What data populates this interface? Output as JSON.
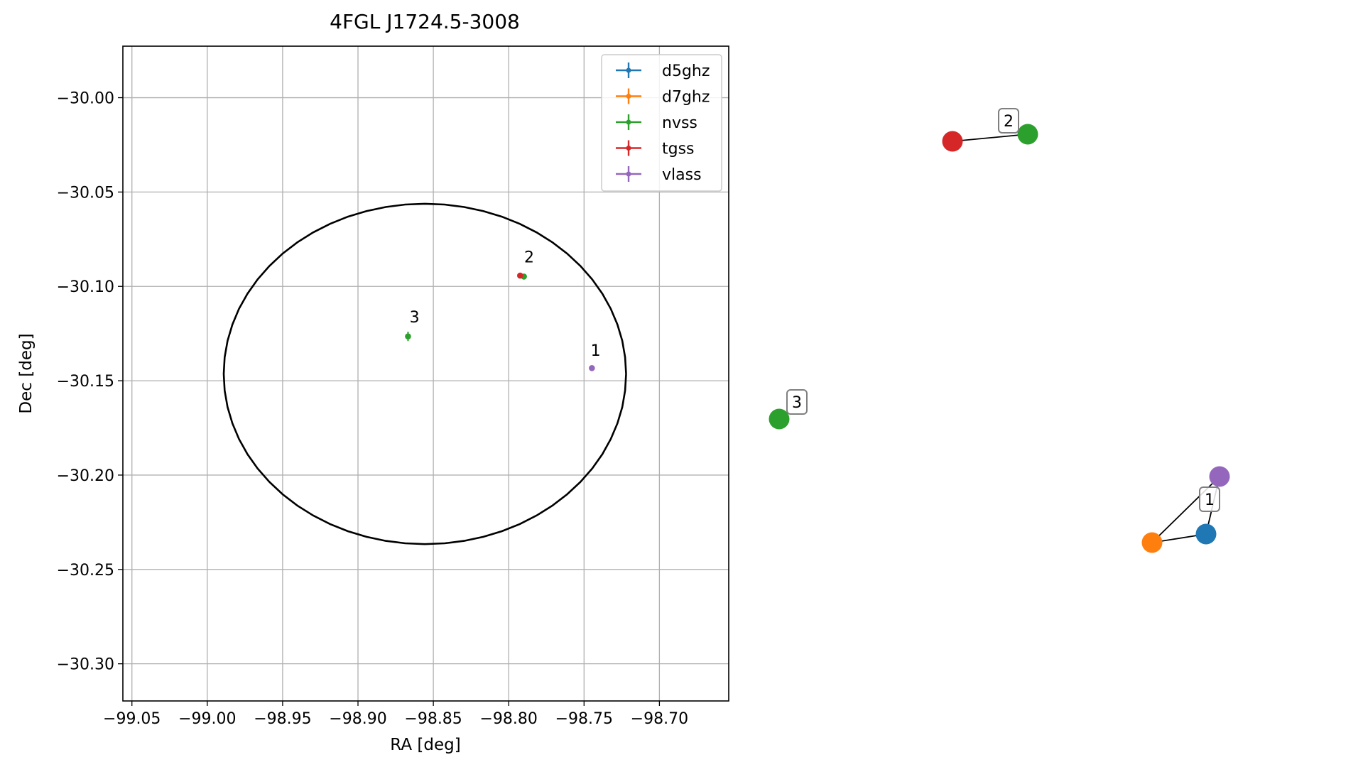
{
  "chart_data": [
    {
      "type": "scatter",
      "title": "4FGL J1724.5-3008",
      "xlabel": "RA [deg]",
      "ylabel": "Dec [deg]",
      "xlim": [
        -99.056,
        -98.654
      ],
      "ylim": [
        -30.3197,
        -29.9727
      ],
      "xticks": [
        -99.05,
        -99.0,
        -98.95,
        -98.9,
        -98.85,
        -98.8,
        -98.75,
        -98.7
      ],
      "xtick_labels": [
        "−99.05",
        "−99.00",
        "−98.95",
        "−98.90",
        "−98.85",
        "−98.80",
        "−98.75",
        "−98.70"
      ],
      "yticks": [
        -30.0,
        -30.05,
        -30.1,
        -30.15,
        -30.2,
        -30.25,
        -30.3
      ],
      "ytick_labels": [
        "−30.00",
        "−30.05",
        "−30.10",
        "−30.15",
        "−30.20",
        "−30.25",
        "−30.30"
      ],
      "grid": true,
      "legend_placement": "top-right",
      "series": [
        {
          "name": "d5ghz",
          "color": "#1f77b4",
          "points": []
        },
        {
          "name": "d7ghz",
          "color": "#ff7f0e",
          "points": []
        },
        {
          "name": "nvss",
          "color": "#2ca02c",
          "points": [
            {
              "x": -98.8668,
              "y": -30.1265,
              "yerr": 0.0025
            },
            {
              "x": -98.7899,
              "y": -30.0948
            }
          ]
        },
        {
          "name": "tgss",
          "color": "#d62728",
          "points": [
            {
              "x": -98.7924,
              "y": -30.0943
            }
          ]
        },
        {
          "name": "vlass",
          "color": "#9467bd",
          "points": [
            {
              "x": -98.7448,
              "y": -30.1433
            }
          ]
        }
      ],
      "ellipse": {
        "center_x": -98.8556,
        "center_y": -30.1464,
        "semi_x": 0.1335,
        "semi_y": 0.0902,
        "color": "#000000"
      },
      "annotations": [
        {
          "text": "1",
          "x": -98.7423,
          "y": -30.1368
        },
        {
          "text": "2",
          "x": -98.7864,
          "y": -30.0873
        },
        {
          "text": "3",
          "x": -98.8625,
          "y": -30.1191
        }
      ]
    },
    {
      "type": "graph",
      "nodes": [
        {
          "group": "1",
          "series": "vlass",
          "color": "#9467bd"
        },
        {
          "group": "1",
          "series": "d5ghz",
          "color": "#1f77b4"
        },
        {
          "group": "1",
          "series": "d7ghz",
          "color": "#ff7f0e"
        },
        {
          "group": "2",
          "series": "tgss",
          "color": "#d62728"
        },
        {
          "group": "2",
          "series": "nvss",
          "color": "#2ca02c"
        },
        {
          "group": "3",
          "series": "nvss",
          "color": "#2ca02c"
        }
      ],
      "edges": [
        [
          "vlass",
          "d7ghz"
        ],
        [
          "vlass",
          "d5ghz"
        ],
        [
          "d5ghz",
          "d7ghz"
        ],
        [
          "tgss",
          "nvss"
        ]
      ],
      "group_labels": [
        "1",
        "2",
        "3"
      ]
    }
  ]
}
